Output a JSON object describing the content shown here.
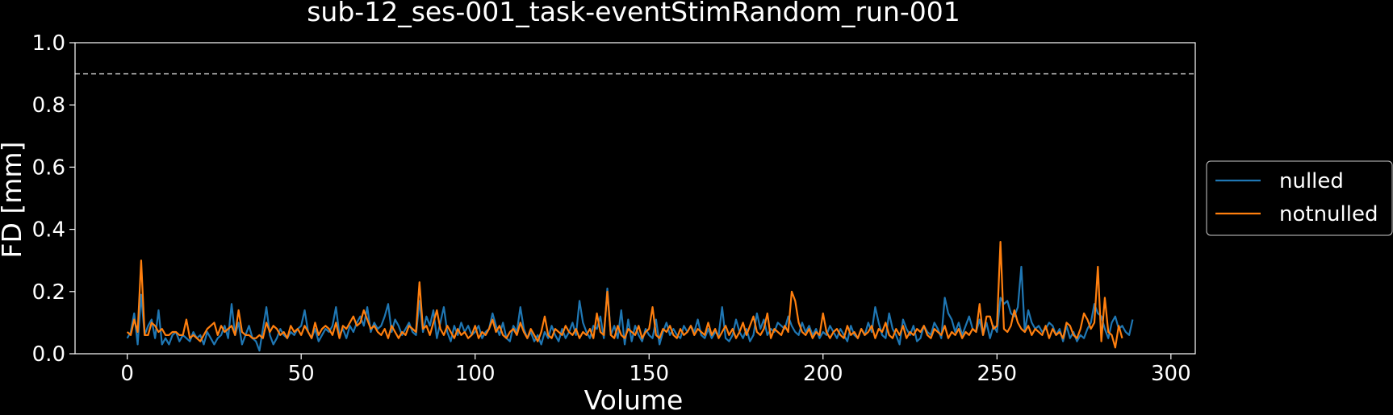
{
  "colors": {
    "background": "#000000",
    "foreground": "#ffffff",
    "nulled": "#1f77b4",
    "notnulled": "#ff7f0e",
    "threshold": "#bfbfbf"
  },
  "chart_data": {
    "type": "line",
    "title": "sub-12_ses-001_task-eventStimRandom_run-001",
    "xlabel": "Volume",
    "ylabel": "FD [mm]",
    "xlim": [
      -15,
      307
    ],
    "ylim": [
      0.0,
      1.0
    ],
    "xticks": [
      0,
      50,
      100,
      150,
      200,
      250,
      300
    ],
    "yticks": [
      0.0,
      0.2,
      0.4,
      0.6,
      0.8,
      1.0
    ],
    "xtick_labels": [
      "0",
      "50",
      "100",
      "150",
      "200",
      "250",
      "300"
    ],
    "ytick_labels": [
      "0.0",
      "0.2",
      "0.4",
      "0.6",
      "0.8",
      "1.0"
    ],
    "grid": false,
    "legend_position": "outside-right",
    "threshold": {
      "y": 0.9,
      "style": "dashed"
    },
    "series": [
      {
        "name": "nulled",
        "color": "#1f77b4",
        "x_start": 0,
        "values": [
          0.05,
          0.07,
          0.13,
          0.03,
          0.19,
          0.06,
          0.09,
          0.11,
          0.05,
          0.14,
          0.03,
          0.05,
          0.03,
          0.06,
          0.07,
          0.04,
          0.06,
          0.05,
          0.04,
          0.07,
          0.05,
          0.06,
          0.03,
          0.07,
          0.05,
          0.03,
          0.05,
          0.06,
          0.09,
          0.05,
          0.16,
          0.06,
          0.1,
          0.03,
          0.06,
          0.09,
          0.05,
          0.04,
          0.01,
          0.08,
          0.15,
          0.06,
          0.03,
          0.05,
          0.08,
          0.06,
          0.05,
          0.07,
          0.06,
          0.08,
          0.09,
          0.14,
          0.07,
          0.05,
          0.08,
          0.04,
          0.06,
          0.08,
          0.07,
          0.09,
          0.15,
          0.06,
          0.08,
          0.05,
          0.09,
          0.07,
          0.1,
          0.12,
          0.09,
          0.15,
          0.07,
          0.1,
          0.08,
          0.09,
          0.12,
          0.16,
          0.07,
          0.11,
          0.09,
          0.06,
          0.08,
          0.1,
          0.07,
          0.06,
          0.17,
          0.07,
          0.12,
          0.09,
          0.14,
          0.05,
          0.1,
          0.15,
          0.07,
          0.04,
          0.09,
          0.06,
          0.1,
          0.07,
          0.09,
          0.06,
          0.07,
          0.09,
          0.05,
          0.07,
          0.08,
          0.13,
          0.09,
          0.06,
          0.1,
          0.05,
          0.04,
          0.09,
          0.07,
          0.15,
          0.08,
          0.05,
          0.07,
          0.04,
          0.06,
          0.03,
          0.07,
          0.05,
          0.09,
          0.06,
          0.04,
          0.08,
          0.05,
          0.07,
          0.1,
          0.06,
          0.17,
          0.1,
          0.07,
          0.05,
          0.09,
          0.08,
          0.12,
          0.05,
          0.21,
          0.06,
          0.09,
          0.05,
          0.14,
          0.03,
          0.11,
          0.04,
          0.09,
          0.06,
          0.04,
          0.08,
          0.06,
          0.05,
          0.11,
          0.03,
          0.07,
          0.1,
          0.06,
          0.08,
          0.06,
          0.05,
          0.09,
          0.07,
          0.09,
          0.07,
          0.11,
          0.06,
          0.05,
          0.08,
          0.05,
          0.07,
          0.06,
          0.15,
          0.05,
          0.04,
          0.06,
          0.11,
          0.07,
          0.05,
          0.08,
          0.04,
          0.06,
          0.13,
          0.08,
          0.11,
          0.06,
          0.08,
          0.07,
          0.1,
          0.09,
          0.08,
          0.12,
          0.09,
          0.07,
          0.06,
          0.1,
          0.07,
          0.09,
          0.06,
          0.08,
          0.05,
          0.07,
          0.06,
          0.09,
          0.07,
          0.05,
          0.08,
          0.06,
          0.04,
          0.09,
          0.06,
          0.05,
          0.08,
          0.06,
          0.1,
          0.07,
          0.15,
          0.1,
          0.06,
          0.05,
          0.13,
          0.08,
          0.06,
          0.03,
          0.11,
          0.08,
          0.06,
          0.09,
          0.04,
          0.05,
          0.09,
          0.07,
          0.06,
          0.1,
          0.08,
          0.05,
          0.18,
          0.13,
          0.11,
          0.07,
          0.1,
          0.06,
          0.09,
          0.12,
          0.08,
          0.07,
          0.11,
          0.06,
          0.1,
          0.05,
          0.09,
          0.07,
          0.18,
          0.16,
          0.17,
          0.13,
          0.12,
          0.15,
          0.28,
          0.07,
          0.14,
          0.1,
          0.08,
          0.09,
          0.07,
          0.08,
          0.1,
          0.09,
          0.06,
          0.08,
          0.04,
          0.09,
          0.05,
          0.07,
          0.04,
          0.06,
          0.05,
          0.08,
          0.1,
          0.16,
          0.13,
          0.12,
          0.08,
          0.05,
          0.1,
          0.12,
          0.08,
          0.09,
          0.07,
          0.06,
          0.11
        ]
      },
      {
        "name": "notnulled",
        "color": "#ff7f0e",
        "x_start": 0,
        "values": [
          0.07,
          0.06,
          0.11,
          0.07,
          0.3,
          0.06,
          0.06,
          0.1,
          0.09,
          0.07,
          0.08,
          0.06,
          0.06,
          0.07,
          0.07,
          0.06,
          0.06,
          0.11,
          0.05,
          0.06,
          0.05,
          0.04,
          0.06,
          0.08,
          0.09,
          0.1,
          0.06,
          0.09,
          0.07,
          0.08,
          0.09,
          0.06,
          0.14,
          0.07,
          0.06,
          0.06,
          0.05,
          0.05,
          0.06,
          0.05,
          0.1,
          0.07,
          0.09,
          0.08,
          0.06,
          0.07,
          0.05,
          0.09,
          0.07,
          0.08,
          0.06,
          0.09,
          0.07,
          0.05,
          0.1,
          0.06,
          0.08,
          0.09,
          0.08,
          0.06,
          0.1,
          0.05,
          0.09,
          0.08,
          0.1,
          0.12,
          0.09,
          0.1,
          0.14,
          0.11,
          0.08,
          0.09,
          0.07,
          0.06,
          0.08,
          0.05,
          0.09,
          0.07,
          0.05,
          0.07,
          0.06,
          0.09,
          0.08,
          0.07,
          0.23,
          0.08,
          0.09,
          0.06,
          0.1,
          0.14,
          0.08,
          0.06,
          0.09,
          0.07,
          0.05,
          0.08,
          0.06,
          0.07,
          0.05,
          0.06,
          0.09,
          0.05,
          0.07,
          0.06,
          0.08,
          0.11,
          0.07,
          0.09,
          0.06,
          0.05,
          0.07,
          0.08,
          0.06,
          0.1,
          0.07,
          0.05,
          0.08,
          0.06,
          0.04,
          0.07,
          0.12,
          0.06,
          0.05,
          0.08,
          0.07,
          0.06,
          0.09,
          0.07,
          0.06,
          0.08,
          0.05,
          0.07,
          0.06,
          0.08,
          0.05,
          0.13,
          0.07,
          0.06,
          0.2,
          0.06,
          0.05,
          0.09,
          0.06,
          0.05,
          0.08,
          0.07,
          0.06,
          0.09,
          0.05,
          0.07,
          0.08,
          0.15,
          0.06,
          0.05,
          0.08,
          0.07,
          0.09,
          0.06,
          0.05,
          0.08,
          0.06,
          0.07,
          0.09,
          0.06,
          0.08,
          0.07,
          0.06,
          0.1,
          0.06,
          0.08,
          0.05,
          0.07,
          0.09,
          0.06,
          0.08,
          0.05,
          0.07,
          0.1,
          0.06,
          0.09,
          0.12,
          0.07,
          0.06,
          0.08,
          0.13,
          0.05,
          0.08,
          0.07,
          0.06,
          0.09,
          0.07,
          0.2,
          0.17,
          0.1,
          0.07,
          0.06,
          0.08,
          0.05,
          0.07,
          0.06,
          0.13,
          0.07,
          0.05,
          0.07,
          0.08,
          0.06,
          0.05,
          0.09,
          0.06,
          0.07,
          0.05,
          0.08,
          0.06,
          0.07,
          0.09,
          0.05,
          0.08,
          0.07,
          0.1,
          0.06,
          0.05,
          0.08,
          0.06,
          0.09,
          0.05,
          0.07,
          0.06,
          0.08,
          0.07,
          0.09,
          0.06,
          0.05,
          0.08,
          0.07,
          0.06,
          0.09,
          0.05,
          0.07,
          0.06,
          0.08,
          0.05,
          0.07,
          0.06,
          0.08,
          0.07,
          0.16,
          0.06,
          0.12,
          0.12,
          0.08,
          0.09,
          0.36,
          0.08,
          0.07,
          0.09,
          0.14,
          0.1,
          0.08,
          0.07,
          0.09,
          0.06,
          0.08,
          0.07,
          0.06,
          0.09,
          0.05,
          0.08,
          0.06,
          0.07,
          0.05,
          0.1,
          0.09,
          0.06,
          0.05,
          0.08,
          0.13,
          0.11,
          0.08,
          0.1,
          0.28,
          0.04,
          0.18,
          0.07,
          0.06,
          0.02,
          0.09,
          0.05
        ]
      }
    ]
  }
}
